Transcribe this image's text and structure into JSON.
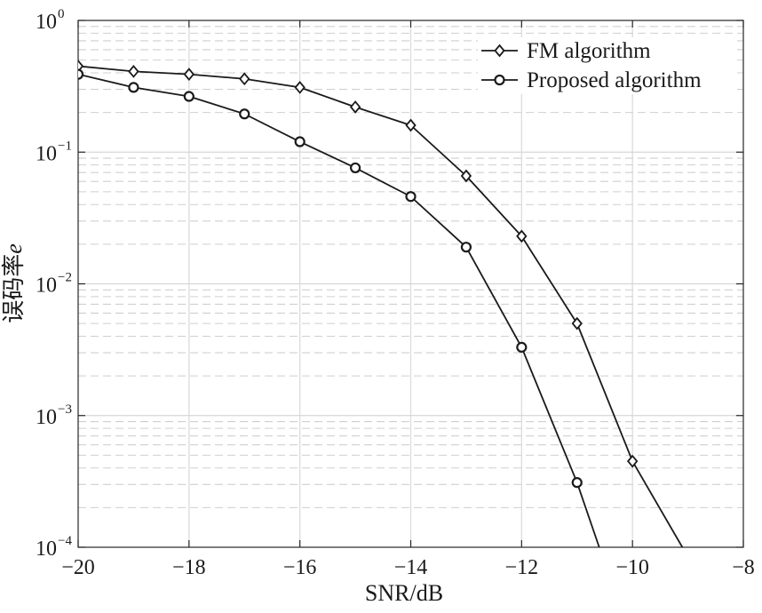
{
  "chart_data": {
    "type": "line",
    "xlabel": "SNR/dB",
    "ylabel": "误码率",
    "ylabel_symbol": "e",
    "xlim": [
      -20,
      -8
    ],
    "ylim": [
      0.0001,
      1
    ],
    "yscale": "log",
    "grid": true,
    "legend_position": "top-right",
    "x_ticks": [
      -20,
      -18,
      -16,
      -14,
      -12,
      -10,
      -8
    ],
    "x_tick_labels": [
      "−20",
      "−18",
      "−16",
      "−14",
      "−12",
      "−10",
      "−8"
    ],
    "y_ticks": [
      {
        "value": 1,
        "base": "10",
        "exp": "0"
      },
      {
        "value": 0.1,
        "base": "10",
        "exp": "−1"
      },
      {
        "value": 0.01,
        "base": "10",
        "exp": "−2"
      },
      {
        "value": 0.001,
        "base": "10",
        "exp": "−3"
      },
      {
        "value": 0.0001,
        "base": "10",
        "exp": "−4"
      }
    ],
    "series": [
      {
        "name": "FM algorithm",
        "marker": "diamond",
        "color": "#1a1a1a",
        "x": [
          -20,
          -19,
          -18,
          -17,
          -16,
          -15,
          -14,
          -13,
          -12,
          -11,
          -10,
          -9.1
        ],
        "y": [
          0.45,
          0.41,
          0.39,
          0.36,
          0.31,
          0.22,
          0.16,
          0.066,
          0.023,
          0.005,
          0.00045,
          0.0001
        ],
        "marker_count": 11
      },
      {
        "name": "Proposed algorithm",
        "marker": "circle",
        "color": "#1a1a1a",
        "x": [
          -20,
          -19,
          -18,
          -17,
          -16,
          -15,
          -14,
          -13,
          -12,
          -11,
          -10.6
        ],
        "y": [
          0.39,
          0.31,
          0.265,
          0.195,
          0.12,
          0.076,
          0.046,
          0.019,
          0.0033,
          0.00031,
          0.0001
        ],
        "marker_count": 10
      }
    ]
  }
}
